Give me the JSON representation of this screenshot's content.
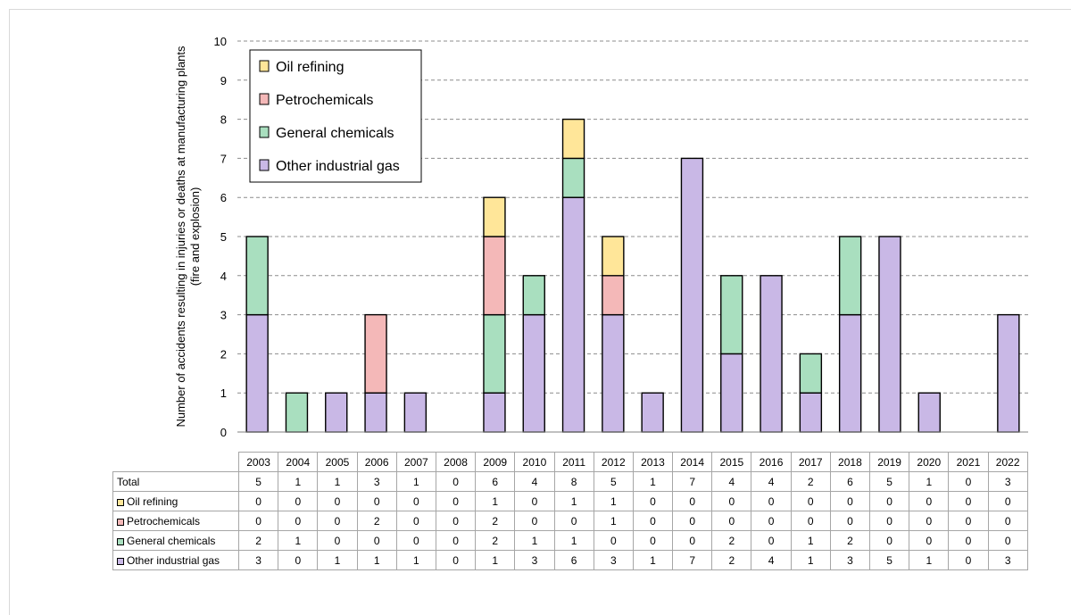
{
  "colors": {
    "oil_refining": "#FFE699",
    "petrochemicals": "#F4B8B8",
    "general_chemicals": "#A9DFBF",
    "other_industrial_gas": "#C9B8E6"
  },
  "chart_data": {
    "type": "bar",
    "stacked": true,
    "ylabel": "Number of accidents resulting in injuries or deaths at manufacturing plants (fire and explosion)",
    "ylabel_lines": [
      "Number of accidents resulting in injuries or deaths at manufacturing plants",
      "(fire and explosion)"
    ],
    "ylim": [
      0,
      10
    ],
    "yticks": [
      0,
      1,
      2,
      3,
      4,
      5,
      6,
      7,
      8,
      9,
      10
    ],
    "grid": true,
    "legend_position": "top-left",
    "categories": [
      "2003",
      "2004",
      "2005",
      "2006",
      "2007",
      "2008",
      "2009",
      "2010",
      "2011",
      "2012",
      "2013",
      "2014",
      "2015",
      "2016",
      "2017",
      "2018",
      "2019",
      "2020",
      "2021",
      "2022"
    ],
    "series": [
      {
        "name": "Other industrial gas",
        "key": "other_industrial_gas",
        "values": [
          3,
          0,
          1,
          1,
          1,
          0,
          1,
          3,
          6,
          3,
          1,
          7,
          2,
          4,
          1,
          3,
          5,
          1,
          0,
          3
        ]
      },
      {
        "name": "General chemicals",
        "key": "general_chemicals",
        "values": [
          2,
          1,
          0,
          0,
          0,
          0,
          2,
          1,
          1,
          0,
          0,
          0,
          2,
          0,
          1,
          2,
          0,
          0,
          0,
          0
        ]
      },
      {
        "name": "Petrochemicals",
        "key": "petrochemicals",
        "values": [
          0,
          0,
          0,
          2,
          0,
          0,
          2,
          0,
          0,
          1,
          0,
          0,
          0,
          0,
          0,
          0,
          0,
          0,
          0,
          0
        ]
      },
      {
        "name": "Oil refining",
        "key": "oil_refining",
        "values": [
          0,
          0,
          0,
          0,
          0,
          0,
          1,
          0,
          1,
          1,
          0,
          0,
          0,
          0,
          0,
          0,
          0,
          0,
          0,
          0
        ]
      }
    ],
    "legend_order": [
      "oil_refining",
      "petrochemicals",
      "general_chemicals",
      "other_industrial_gas"
    ],
    "totals": [
      5,
      1,
      1,
      3,
      1,
      0,
      6,
      4,
      8,
      5,
      1,
      7,
      4,
      4,
      2,
      6,
      5,
      1,
      0,
      3
    ]
  },
  "table": {
    "total_label": "Total",
    "rows": [
      {
        "label": "Oil refining",
        "key": "oil_refining",
        "values": [
          0,
          0,
          0,
          0,
          0,
          0,
          1,
          0,
          1,
          1,
          0,
          0,
          0,
          0,
          0,
          0,
          0,
          0,
          0,
          0
        ]
      },
      {
        "label": "Petrochemicals",
        "key": "petrochemicals",
        "values": [
          0,
          0,
          0,
          2,
          0,
          0,
          2,
          0,
          0,
          1,
          0,
          0,
          0,
          0,
          0,
          0,
          0,
          0,
          0,
          0
        ]
      },
      {
        "label": "General chemicals",
        "key": "general_chemicals",
        "values": [
          2,
          1,
          0,
          0,
          0,
          0,
          2,
          1,
          1,
          0,
          0,
          0,
          2,
          0,
          1,
          2,
          0,
          0,
          0,
          0
        ]
      },
      {
        "label": "Other industrial gas",
        "key": "other_industrial_gas",
        "values": [
          3,
          0,
          1,
          1,
          1,
          0,
          1,
          3,
          6,
          3,
          1,
          7,
          2,
          4,
          1,
          3,
          5,
          1,
          0,
          3
        ]
      }
    ]
  }
}
